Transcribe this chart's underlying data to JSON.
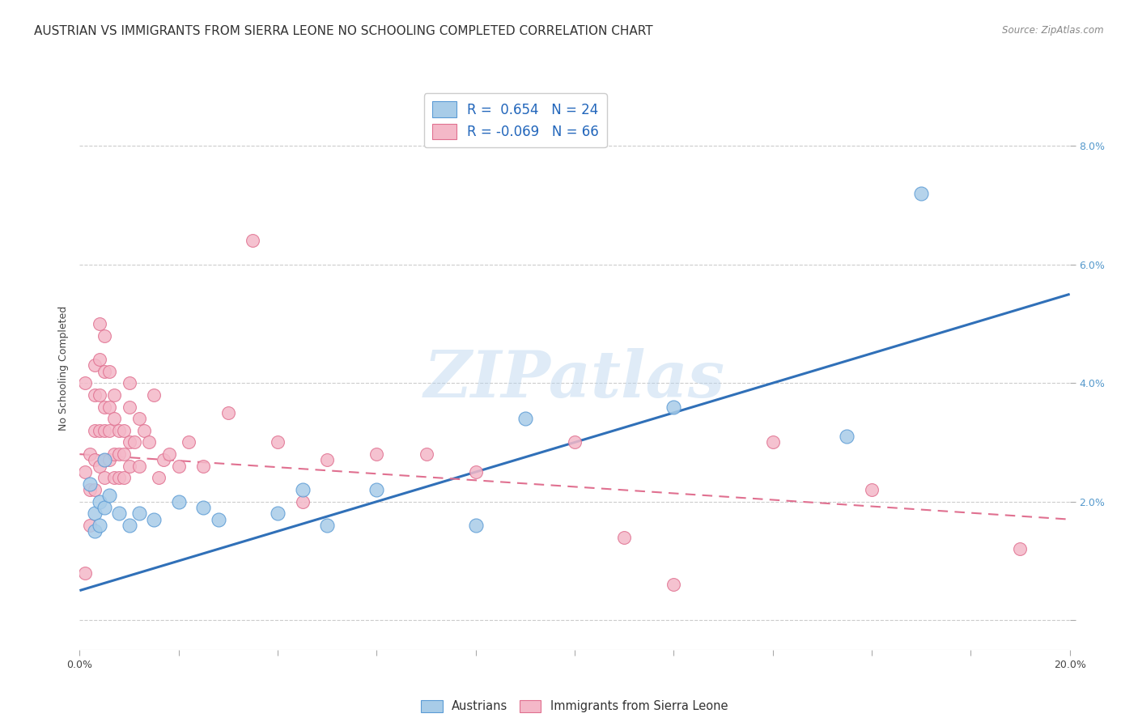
{
  "title": "AUSTRIAN VS IMMIGRANTS FROM SIERRA LEONE NO SCHOOLING COMPLETED CORRELATION CHART",
  "source": "Source: ZipAtlas.com",
  "ylabel": "No Schooling Completed",
  "xlabel": "",
  "xlim": [
    0.0,
    0.2
  ],
  "ylim": [
    -0.005,
    0.09
  ],
  "xticks": [
    0.0,
    0.02,
    0.04,
    0.06,
    0.08,
    0.1,
    0.12,
    0.14,
    0.16,
    0.18,
    0.2
  ],
  "yticks": [
    0.0,
    0.02,
    0.04,
    0.06,
    0.08
  ],
  "blue_R": 0.654,
  "blue_N": 24,
  "pink_R": -0.069,
  "pink_N": 66,
  "blue_color": "#a8cce8",
  "pink_color": "#f4b8c8",
  "blue_edge_color": "#5b9bd5",
  "pink_edge_color": "#e07090",
  "blue_line_color": "#3070b8",
  "pink_line_color": "#e07090",
  "background_color": "#ffffff",
  "grid_color": "#cccccc",
  "blue_scatter_x": [
    0.002,
    0.003,
    0.003,
    0.004,
    0.004,
    0.005,
    0.005,
    0.006,
    0.008,
    0.01,
    0.012,
    0.015,
    0.02,
    0.025,
    0.028,
    0.04,
    0.045,
    0.05,
    0.06,
    0.08,
    0.09,
    0.12,
    0.155,
    0.17
  ],
  "blue_scatter_y": [
    0.023,
    0.018,
    0.015,
    0.02,
    0.016,
    0.027,
    0.019,
    0.021,
    0.018,
    0.016,
    0.018,
    0.017,
    0.02,
    0.019,
    0.017,
    0.018,
    0.022,
    0.016,
    0.022,
    0.016,
    0.034,
    0.036,
    0.031,
    0.072
  ],
  "blue_line_x": [
    0.0,
    0.2
  ],
  "blue_line_y": [
    0.005,
    0.055
  ],
  "pink_line_x": [
    0.0,
    0.2
  ],
  "pink_line_y": [
    0.028,
    0.017
  ],
  "pink_scatter_x": [
    0.001,
    0.001,
    0.001,
    0.002,
    0.002,
    0.002,
    0.003,
    0.003,
    0.003,
    0.003,
    0.003,
    0.004,
    0.004,
    0.004,
    0.004,
    0.004,
    0.005,
    0.005,
    0.005,
    0.005,
    0.005,
    0.005,
    0.006,
    0.006,
    0.006,
    0.006,
    0.007,
    0.007,
    0.007,
    0.007,
    0.008,
    0.008,
    0.008,
    0.009,
    0.009,
    0.009,
    0.01,
    0.01,
    0.01,
    0.01,
    0.011,
    0.012,
    0.012,
    0.013,
    0.014,
    0.015,
    0.016,
    0.017,
    0.018,
    0.02,
    0.022,
    0.025,
    0.03,
    0.035,
    0.04,
    0.045,
    0.05,
    0.06,
    0.07,
    0.08,
    0.1,
    0.11,
    0.12,
    0.14,
    0.16,
    0.19
  ],
  "pink_scatter_y": [
    0.04,
    0.025,
    0.008,
    0.028,
    0.022,
    0.016,
    0.043,
    0.038,
    0.032,
    0.027,
    0.022,
    0.05,
    0.044,
    0.038,
    0.032,
    0.026,
    0.048,
    0.042,
    0.036,
    0.032,
    0.027,
    0.024,
    0.042,
    0.036,
    0.032,
    0.027,
    0.038,
    0.034,
    0.028,
    0.024,
    0.032,
    0.028,
    0.024,
    0.032,
    0.028,
    0.024,
    0.04,
    0.036,
    0.03,
    0.026,
    0.03,
    0.034,
    0.026,
    0.032,
    0.03,
    0.038,
    0.024,
    0.027,
    0.028,
    0.026,
    0.03,
    0.026,
    0.035,
    0.064,
    0.03,
    0.02,
    0.027,
    0.028,
    0.028,
    0.025,
    0.03,
    0.014,
    0.006,
    0.03,
    0.022,
    0.012
  ],
  "watermark": "ZIPatlas",
  "title_fontsize": 11,
  "label_fontsize": 9,
  "tick_fontsize": 9,
  "legend_text_blue": "R =  0.654   N = 24",
  "legend_text_pink": "R = -0.069   N = 66",
  "legend_label_blue": "Austrians",
  "legend_label_pink": "Immigrants from Sierra Leone"
}
